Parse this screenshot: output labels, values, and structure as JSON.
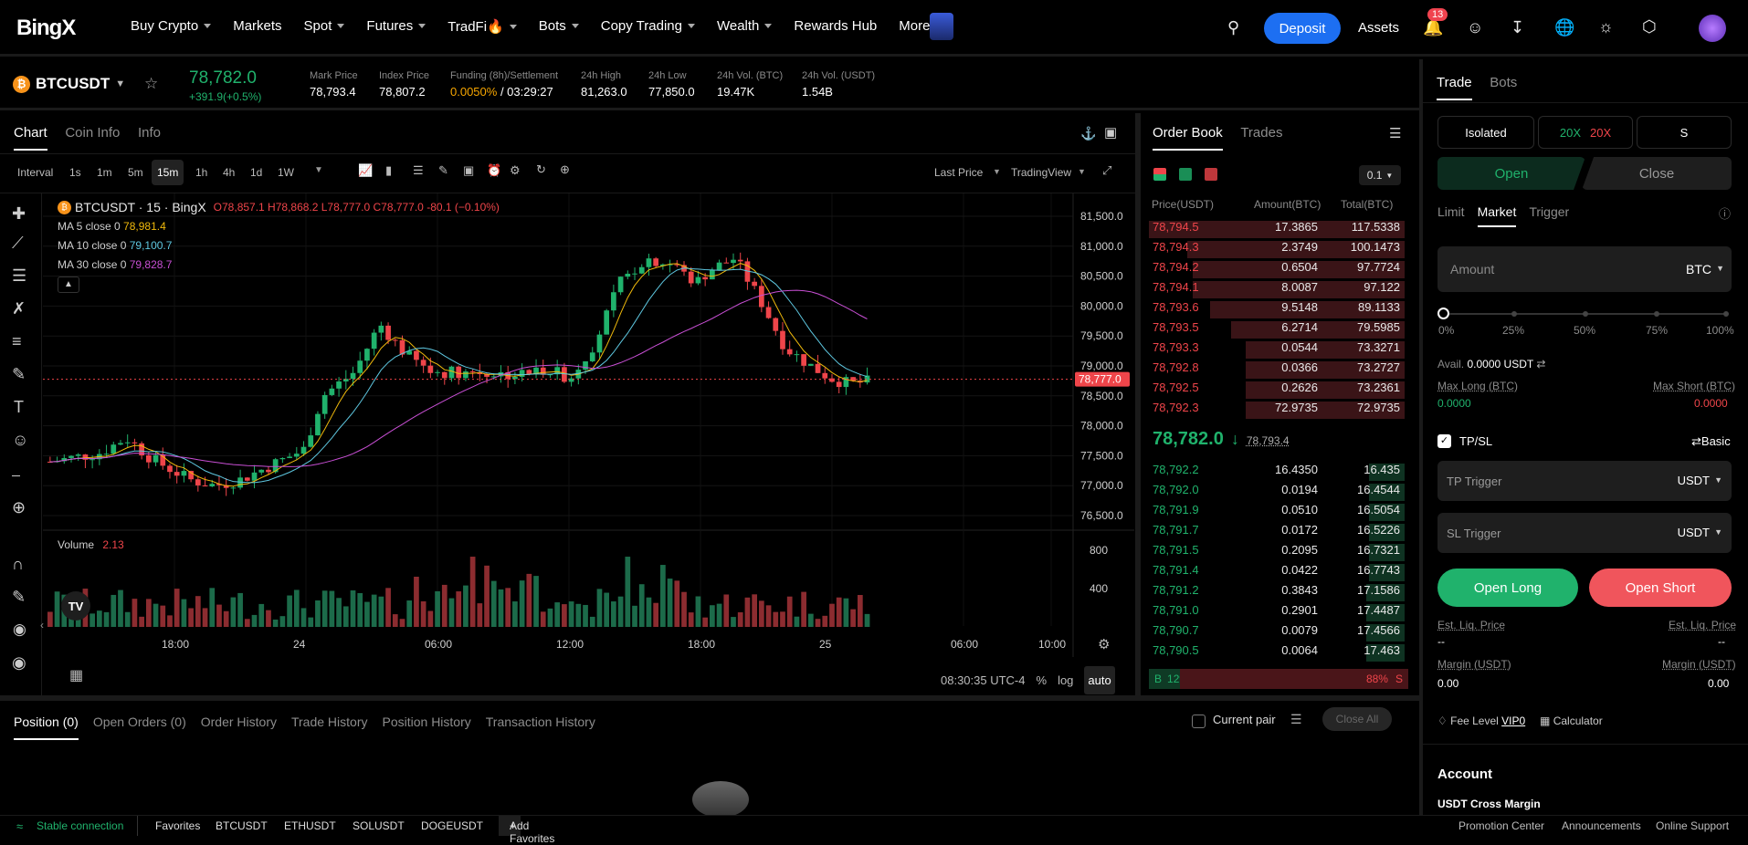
{
  "brand": "BingX",
  "nav": [
    {
      "label": "Buy Crypto"
    },
    {
      "label": "Markets"
    },
    {
      "label": "Spot"
    },
    {
      "label": "Futures"
    },
    {
      "label": "TradFi🔥"
    },
    {
      "label": "Bots"
    },
    {
      "label": "Copy Trading"
    },
    {
      "label": "Wealth"
    },
    {
      "label": "Rewards Hub"
    },
    {
      "label": "More"
    }
  ],
  "header": {
    "deposit": "Deposit",
    "assets": "Assets",
    "notif_count": "13"
  },
  "ticker": {
    "pair": "BTCUSDT",
    "last": "78,782.0",
    "change": "+391.9(+0.5%)",
    "stats": [
      {
        "label": "Mark Price",
        "value": "78,793.4"
      },
      {
        "label": "Index Price",
        "value": "78,807.2"
      },
      {
        "label": "Funding (8h)/Settlement",
        "value": "0.0050%",
        "value2": " / 03:29:27"
      },
      {
        "label": "24h High",
        "value": "81,263.0"
      },
      {
        "label": "24h Low",
        "value": "77,850.0"
      },
      {
        "label": "24h Vol. (BTC)",
        "value": "19.47K"
      },
      {
        "label": "24h Vol. (USDT)",
        "value": "1.54B"
      }
    ]
  },
  "chartTabs": [
    "Chart",
    "Coin Info",
    "Info"
  ],
  "intervals": [
    "Interval",
    "1s",
    "1m",
    "5m",
    "15m",
    "1h",
    "4h",
    "1d",
    "1W"
  ],
  "toolbar": {
    "last_price": "Last Price",
    "tradingview": "TradingView"
  },
  "chart": {
    "legend_title": "BTCUSDT · 15 · BingX",
    "ohlc": "O78,857.1 H78,868.2 L78,777.0 C78,777.0 -80.1 (−0.10%)",
    "ma5": "MA 5 close 0",
    "ma5v": "78,981.4",
    "ma10": "MA 10 close 0",
    "ma10v": "79,100.7",
    "ma30": "MA 30 close 0",
    "ma30v": "79,828.7",
    "price_ticks": [
      "81,500.0",
      "81,000.0",
      "80,500.0",
      "80,000.0",
      "79,500.0",
      "79,000.0",
      "78,500.0",
      "78,000.0",
      "77,500.0",
      "77,000.0",
      "76,500.0"
    ],
    "price_tag": "78,777.0",
    "volume_label": "Volume",
    "volume_value": "2.13",
    "vol_ticks": [
      "800",
      "400"
    ],
    "time_ticks": [
      "18:00",
      "24",
      "06:00",
      "12:00",
      "18:00",
      "25",
      "06:00",
      "10:00"
    ],
    "clock": "08:30:35 UTC-4",
    "pct": "%",
    "log": "log",
    "auto": "auto",
    "colors": {
      "up": "#20b26c",
      "down": "#ef454a",
      "ma5": "#f0b90b",
      "ma10": "#5ec7e0",
      "ma30": "#c84fd4"
    }
  },
  "orderbook": {
    "tabs": [
      "Order Book",
      "Trades"
    ],
    "precision": "0.1",
    "headers": [
      "Price(USDT)",
      "Amount(BTC)",
      "Total(BTC)"
    ],
    "asks": [
      {
        "p": "78,794.5",
        "a": "17.3865",
        "t": "117.5338",
        "d": 1.0
      },
      {
        "p": "78,794.3",
        "a": "2.3749",
        "t": "100.1473",
        "d": 0.85
      },
      {
        "p": "78,794.2",
        "a": "0.6504",
        "t": "97.7724",
        "d": 0.83
      },
      {
        "p": "78,794.1",
        "a": "8.0087",
        "t": "97.122",
        "d": 0.83
      },
      {
        "p": "78,793.6",
        "a": "9.5148",
        "t": "89.1133",
        "d": 0.76
      },
      {
        "p": "78,793.5",
        "a": "6.2714",
        "t": "79.5985",
        "d": 0.68
      },
      {
        "p": "78,793.3",
        "a": "0.0544",
        "t": "73.3271",
        "d": 0.62
      },
      {
        "p": "78,792.8",
        "a": "0.0366",
        "t": "73.2727",
        "d": 0.62
      },
      {
        "p": "78,792.5",
        "a": "0.2626",
        "t": "73.2361",
        "d": 0.62
      },
      {
        "p": "78,792.3",
        "a": "72.9735",
        "t": "72.9735",
        "d": 0.62
      }
    ],
    "mid": "78,782.0",
    "mid_mark": "78,793.4",
    "bids": [
      {
        "p": "78,792.2",
        "a": "16.4350",
        "t": "16.435",
        "d": 0.14
      },
      {
        "p": "78,792.0",
        "a": "0.0194",
        "t": "16.4544",
        "d": 0.14
      },
      {
        "p": "78,791.9",
        "a": "0.0510",
        "t": "16.5054",
        "d": 0.14
      },
      {
        "p": "78,791.7",
        "a": "0.0172",
        "t": "16.5226",
        "d": 0.14
      },
      {
        "p": "78,791.5",
        "a": "0.2095",
        "t": "16.7321",
        "d": 0.14
      },
      {
        "p": "78,791.4",
        "a": "0.0422",
        "t": "16.7743",
        "d": 0.14
      },
      {
        "p": "78,791.2",
        "a": "0.3843",
        "t": "17.1586",
        "d": 0.15
      },
      {
        "p": "78,791.0",
        "a": "0.2901",
        "t": "17.4487",
        "d": 0.15
      },
      {
        "p": "78,790.7",
        "a": "0.0079",
        "t": "17.4566",
        "d": 0.15
      },
      {
        "p": "78,790.5",
        "a": "0.0064",
        "t": "17.463",
        "d": 0.15
      }
    ],
    "buy_label": "B",
    "buy_pct": "12%",
    "sell_pct": "88%",
    "sell_label": "S"
  },
  "trade": {
    "tabs": [
      "Trade",
      "Bots"
    ],
    "margin_mode": "Isolated",
    "lev_long": "20X",
    "lev_short": "20X",
    "mode_s": "S",
    "open": "Open",
    "close": "Close",
    "order_types": [
      "Limit",
      "Market",
      "Trigger"
    ],
    "amount_placeholder": "Amount",
    "amount_unit": "BTC",
    "slider_marks": [
      "0%",
      "25%",
      "50%",
      "75%",
      "100%"
    ],
    "avail": "Avail.",
    "avail_value": "0.0000 USDT",
    "max_long": "Max Long (BTC)",
    "max_long_v": "0.0000",
    "max_short": "Max Short (BTC)",
    "max_short_v": "0.0000",
    "tpsl": "TP/SL",
    "basic": "Basic",
    "tp": "TP Trigger",
    "sl": "SL Trigger",
    "unit": "USDT",
    "open_long": "Open Long",
    "open_short": "Open Short",
    "est_liq": "Est. Liq. Price",
    "est_liq_v": "--",
    "margin": "Margin (USDT)",
    "margin_v": "0.00",
    "fee_level": "Fee Level",
    "vip": "VIP0",
    "calculator": "Calculator",
    "account": "Account",
    "cross": "USDT Cross Margin"
  },
  "positions": {
    "tabs": [
      "Position (0)",
      "Open Orders (0)",
      "Order History",
      "Trade History",
      "Position History",
      "Transaction History"
    ],
    "current_pair": "Current pair",
    "close_all": "Close All"
  },
  "footer": {
    "connection": "Stable connection",
    "favorites": "Favorites",
    "pairs": [
      "BTCUSDT",
      "ETHUSDT",
      "SOLUSDT",
      "DOGEUSDT"
    ],
    "add": "Add Favorites",
    "links": [
      "Promotion Center",
      "Announcements",
      "Online Support"
    ]
  }
}
